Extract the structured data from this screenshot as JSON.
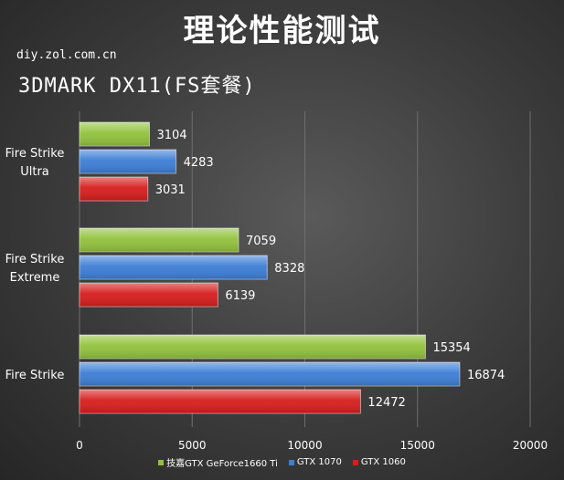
{
  "title": "理论性能测试",
  "watermark": "diy.zol.com.cn",
  "subtitle": "3DMARK DX11(FS套餐)",
  "chart_data": {
    "type": "bar",
    "orientation": "horizontal",
    "categories": [
      "Fire Strike Ultra",
      "Fire Strike Extreme",
      "Fire Strike"
    ],
    "category_labels": [
      [
        "Fire Strike",
        "Ultra"
      ],
      [
        "Fire Strike",
        "Extreme"
      ],
      [
        "Fire Strike"
      ]
    ],
    "series": [
      {
        "name": "技嘉GTX GeForce1660 Ti",
        "color": "#92c23c",
        "values": [
          3104,
          7059,
          15354
        ]
      },
      {
        "name": "GTX 1070",
        "color": "#3d7ed6",
        "values": [
          4283,
          8328,
          16874
        ]
      },
      {
        "name": "GTX 1060",
        "color": "#d71d1d",
        "values": [
          3031,
          6139,
          12472
        ]
      }
    ],
    "xlim": [
      0,
      20000
    ],
    "xticks": [
      0,
      5000,
      10000,
      15000,
      20000
    ],
    "grid": true,
    "legend": "bottom",
    "data_labels": true
  }
}
